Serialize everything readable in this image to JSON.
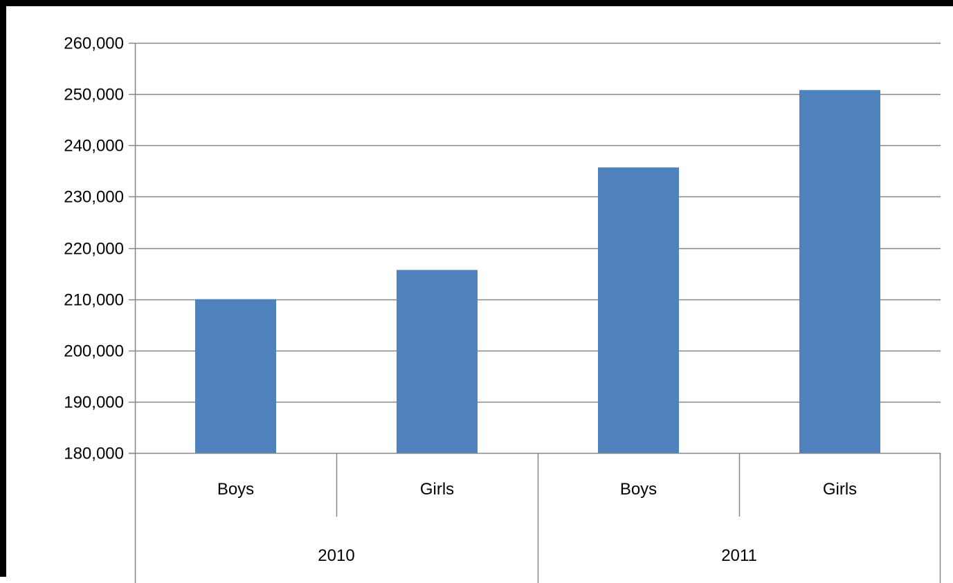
{
  "chart_data": {
    "type": "bar",
    "title": "",
    "xlabel": "",
    "ylabel": "",
    "ylim": [
      180000,
      260000
    ],
    "y_ticks": [
      "180,000",
      "190,000",
      "200,000",
      "210,000",
      "220,000",
      "230,000",
      "240,000",
      "250,000",
      "260,000"
    ],
    "y_tick_values": [
      180000,
      190000,
      200000,
      210000,
      220000,
      230000,
      240000,
      250000,
      260000
    ],
    "groups": [
      {
        "label": "2010",
        "categories": [
          "Boys",
          "Girls"
        ]
      },
      {
        "label": "2011",
        "categories": [
          "Boys",
          "Girls"
        ]
      }
    ],
    "categories": [
      "Boys",
      "Girls",
      "Boys",
      "Girls"
    ],
    "values": [
      210000,
      215700,
      235700,
      250800
    ],
    "grid": true,
    "legend": "none",
    "bar_color": "#4F81BD"
  }
}
